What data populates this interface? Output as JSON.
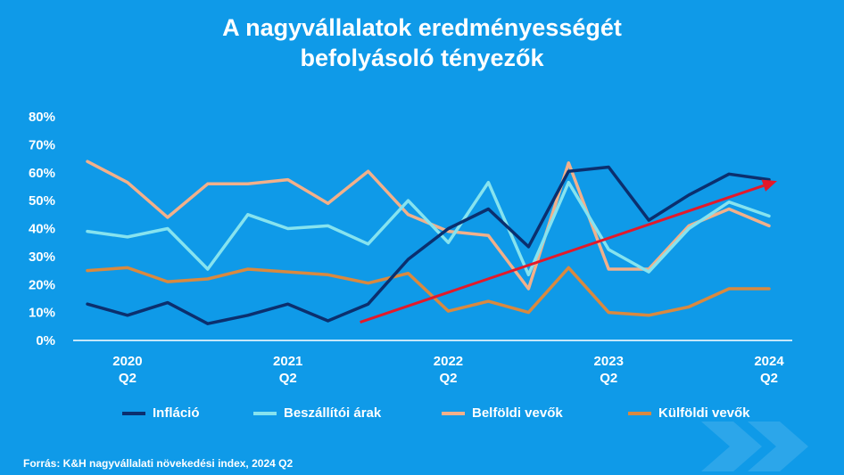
{
  "title_line1": "A nagyvállalatok eredményességét",
  "title_line2": "befolyásoló tényezők",
  "source": "Forrás: K&H nagyvállalati növekedési index, 2024 Q2",
  "colors": {
    "background": "#0f9ae8",
    "inflacio": "#0b2f6e",
    "beszallitoi": "#86e3ef",
    "belfoldi": "#f2b08a",
    "kulfoldi": "#d9893f",
    "trend_arrow": "#e3192a"
  },
  "chart_data": {
    "type": "line",
    "title": "A nagyvállalatok eredményességét befolyásoló tényezők",
    "ylim": [
      0,
      80
    ],
    "y_ticks": [
      "0%",
      "10%",
      "20%",
      "30%",
      "40%",
      "50%",
      "60%",
      "70%",
      "80%"
    ],
    "x_tick_labels": [
      {
        "index": 1,
        "year": "2020",
        "quarter": "Q2"
      },
      {
        "index": 5,
        "year": "2021",
        "quarter": "Q2"
      },
      {
        "index": 9,
        "year": "2022",
        "quarter": "Q2"
      },
      {
        "index": 13,
        "year": "2023",
        "quarter": "Q2"
      },
      {
        "index": 17,
        "year": "2024",
        "quarter": "Q2"
      }
    ],
    "x_count": 18,
    "grid": false,
    "legend_position": "bottom",
    "series": [
      {
        "name": "Infláció",
        "color_key": "inflacio",
        "values": [
          13,
          9,
          13.5,
          6,
          9,
          13,
          7,
          13,
          29,
          40,
          47,
          33.5,
          60.5,
          62,
          43,
          52,
          59.5,
          57.5
        ]
      },
      {
        "name": "Beszállítói árak",
        "color_key": "beszallitoi",
        "values": [
          39,
          37,
          40,
          25.5,
          45,
          40,
          41,
          34.5,
          50,
          35,
          56.5,
          23.5,
          56.5,
          32.5,
          24.5,
          40,
          49.5,
          44.5
        ]
      },
      {
        "name": "Belföldi vevők",
        "color_key": "belfoldi",
        "values": [
          64,
          56.5,
          44,
          56,
          56,
          57.5,
          49,
          60.5,
          45,
          39,
          37.5,
          18.5,
          63.5,
          25.5,
          25.5,
          41,
          47,
          41
        ]
      },
      {
        "name": "Külföldi vevők",
        "color_key": "kulfoldi",
        "values": [
          25,
          26,
          21,
          22,
          25.5,
          24.5,
          23.5,
          20.5,
          24,
          10.5,
          14,
          10,
          26,
          10,
          9,
          12,
          18.5,
          18.5
        ]
      }
    ],
    "trend_arrow": {
      "from": {
        "x_index": 6.8,
        "y": 6.5
      },
      "to": {
        "x_index": 17.2,
        "y": 57
      }
    }
  }
}
